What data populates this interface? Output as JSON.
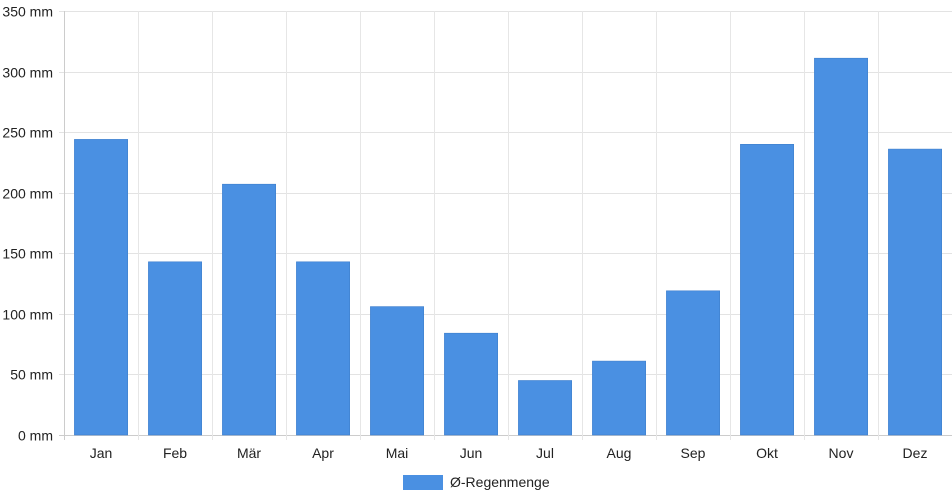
{
  "chart_data": {
    "type": "bar",
    "categories": [
      "Jan",
      "Feb",
      "Mär",
      "Apr",
      "Mai",
      "Jun",
      "Jul",
      "Aug",
      "Sep",
      "Okt",
      "Nov",
      "Dez"
    ],
    "series": [
      {
        "name": "Ø-Regenmenge",
        "values": [
          244,
          143,
          207,
          143,
          106,
          84,
          45,
          61,
          119,
          240,
          311,
          236
        ],
        "color": "#4a90e2"
      }
    ],
    "y_unit": "mm",
    "y_ticks": [
      0,
      50,
      100,
      150,
      200,
      250,
      300,
      350
    ],
    "ylim": [
      0,
      350
    ],
    "grid": true,
    "legend_position": "bottom-center"
  }
}
